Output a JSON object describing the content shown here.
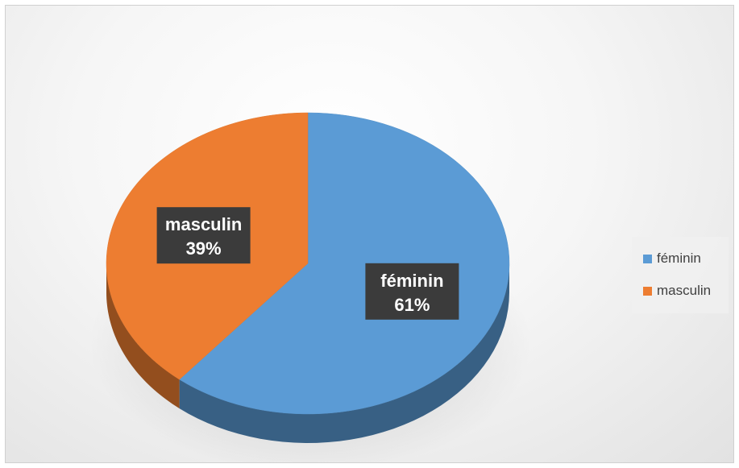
{
  "chart_data": {
    "type": "pie",
    "style": "3d",
    "categories": [
      "féminin",
      "masculin"
    ],
    "values": [
      61,
      39
    ],
    "data_labels": [
      {
        "category": "féminin",
        "percent": "61%"
      },
      {
        "category": "masculin",
        "percent": "39%"
      }
    ],
    "colors": [
      "#5b9bd5",
      "#ed7d31"
    ],
    "legend": {
      "position": "right",
      "entries": [
        "féminin",
        "masculin"
      ]
    }
  }
}
